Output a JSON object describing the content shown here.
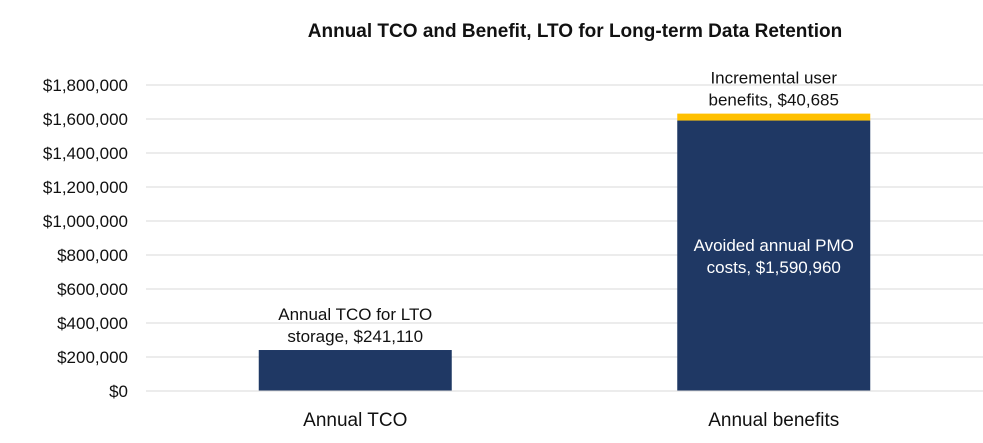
{
  "chart_data": {
    "type": "bar",
    "stacked": true,
    "title": "Annual TCO and Benefit, LTO for Long-term Data Retention",
    "xlabel": "",
    "ylabel": "",
    "ylim": [
      0,
      1800000
    ],
    "ytick_step": 200000,
    "yticks": [
      "$0",
      "$200,000",
      "$400,000",
      "$600,000",
      "$800,000",
      "$1,000,000",
      "$1,200,000",
      "$1,400,000",
      "$1,600,000",
      "$1,800,000"
    ],
    "grid": true,
    "legend": "none",
    "categories": [
      "Annual TCO",
      "Annual benefits"
    ],
    "segments": [
      {
        "category": "Annual TCO",
        "value": 241110,
        "color": "#1f3864",
        "label_lines": [
          "Annual TCO for LTO",
          "storage, $241,110"
        ],
        "label_position": "above"
      },
      {
        "category": "Annual benefits",
        "value": 1590960,
        "color": "#1f3864",
        "label_lines": [
          "Avoided annual PMO",
          "costs, $1,590,960"
        ],
        "label_position": "inside"
      },
      {
        "category": "Annual benefits",
        "value": 40685,
        "color": "#ffc000",
        "label_lines": [
          "Incremental user",
          "benefits, $40,685"
        ],
        "label_position": "above"
      }
    ]
  }
}
